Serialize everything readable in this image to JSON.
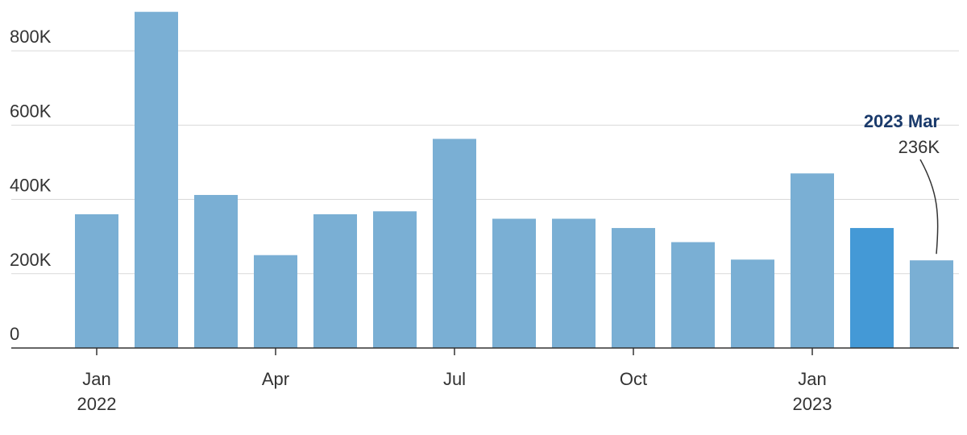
{
  "chart_data": {
    "type": "bar",
    "categories": [
      "2022 Jan",
      "2022 Feb",
      "2022 Mar",
      "2022 Apr",
      "2022 May",
      "2022 Jun",
      "2022 Jul",
      "2022 Aug",
      "2022 Sep",
      "2022 Oct",
      "2022 Nov",
      "2022 Dec",
      "2023 Jan",
      "2023 Feb",
      "2023 Mar"
    ],
    "values": [
      360000,
      905000,
      412000,
      250000,
      360000,
      368000,
      563000,
      348000,
      348000,
      323000,
      285000,
      238000,
      470000,
      323000,
      236000
    ],
    "highlight_category": "2023 Feb",
    "ylim": [
      0,
      900000
    ],
    "yticks": [
      {
        "value": 0,
        "label": "0"
      },
      {
        "value": 200000,
        "label": "200K"
      },
      {
        "value": 400000,
        "label": "400K"
      },
      {
        "value": 600000,
        "label": "600K"
      },
      {
        "value": 800000,
        "label": "800K"
      }
    ],
    "xticks": [
      {
        "category": "2022 Jan",
        "label": "Jan",
        "sublabel": "2022"
      },
      {
        "category": "2022 Apr",
        "label": "Apr",
        "sublabel": ""
      },
      {
        "category": "2022 Jul",
        "label": "Jul",
        "sublabel": ""
      },
      {
        "category": "2022 Oct",
        "label": "Oct",
        "sublabel": ""
      },
      {
        "category": "2023 Jan",
        "label": "Jan",
        "sublabel": "2023"
      }
    ],
    "annotation": {
      "category": "2023 Mar",
      "title": "2023 Mar",
      "value_label": "236K"
    },
    "grid": true,
    "colors": {
      "bar": "#7aafd4",
      "highlight": "#4499d6",
      "grid": "#d9d9d9",
      "axis": "#333333"
    }
  }
}
